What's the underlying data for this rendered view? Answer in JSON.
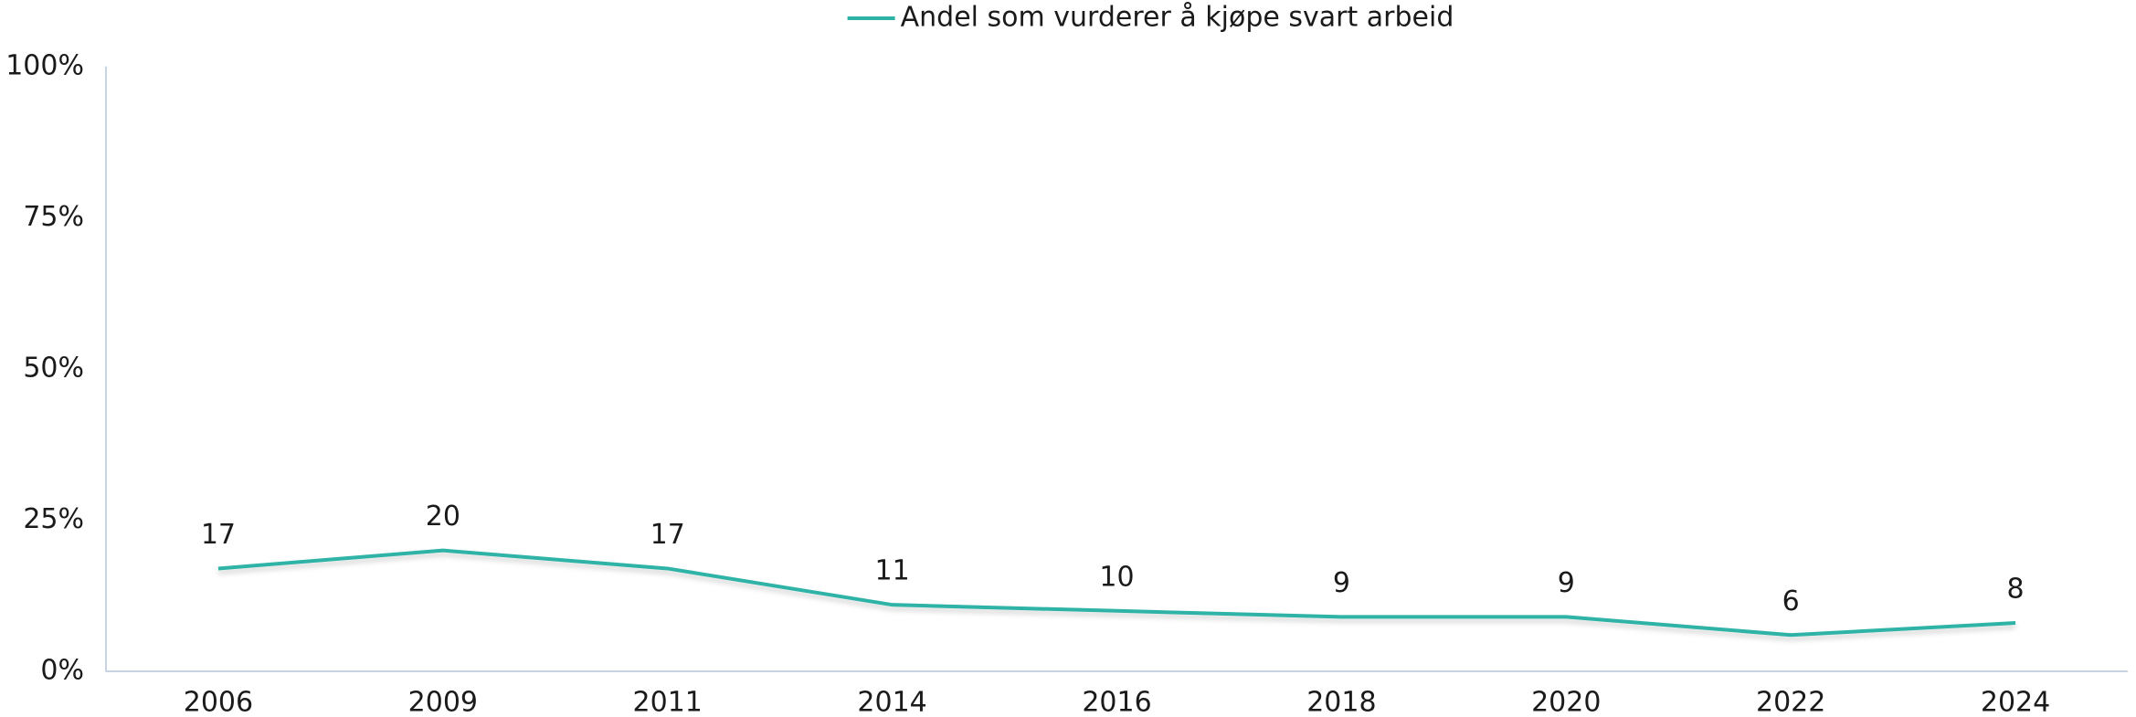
{
  "chart_data": {
    "type": "line",
    "categories": [
      "2006",
      "2009",
      "2011",
      "2014",
      "2016",
      "2018",
      "2020",
      "2022",
      "2024"
    ],
    "series": [
      {
        "name": "Andel som vurderer å kjøpe svart arbeid",
        "color": "#2db3a6",
        "values": [
          17,
          20,
          17,
          11,
          10,
          9,
          9,
          6,
          8
        ]
      }
    ],
    "ylim": [
      0,
      100
    ],
    "yticks": [
      {
        "value": 0,
        "label": "0%"
      },
      {
        "value": 25,
        "label": "25%"
      },
      {
        "value": 50,
        "label": "50%"
      },
      {
        "value": 75,
        "label": "75%"
      },
      {
        "value": 100,
        "label": "100%"
      }
    ],
    "grid": false,
    "legend": "top"
  }
}
